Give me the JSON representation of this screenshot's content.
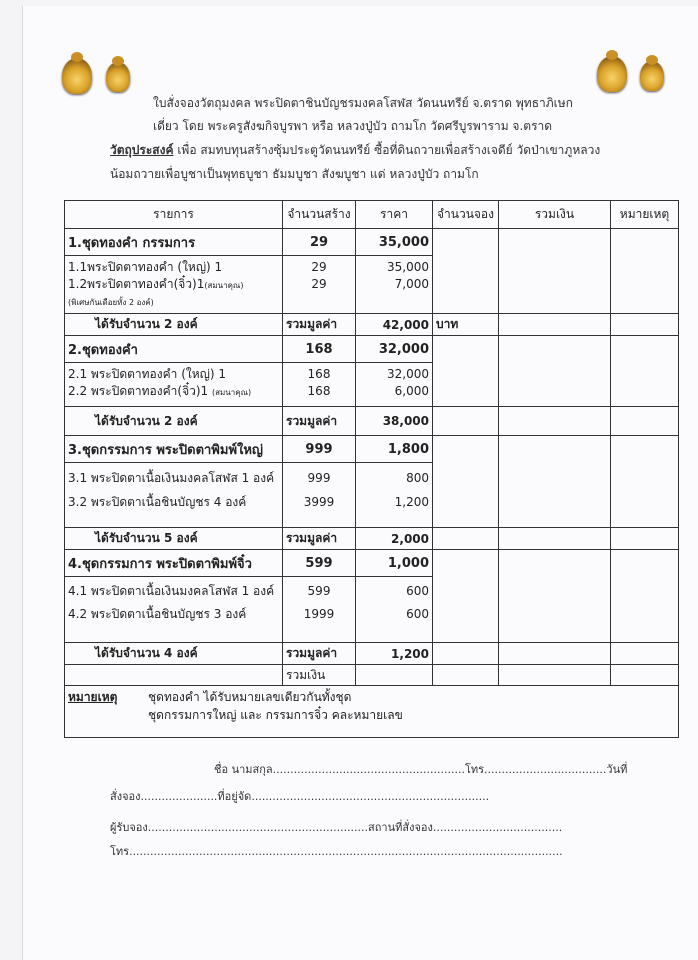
{
  "header": {
    "line1": "ใบสั่งจองวัตถุมงคล  พระปิดตาชินบัญชรมงคลโสฬส  วัดนนทรีย์  จ.ตราด พุทธาภิเษก",
    "line2": "เดี่ยว โดย พระครูสังฆกิจบูรพา หรือ หลวงปู่บัว  ถามโก  วัดศรีบูรพาราม  จ.ตราด",
    "purpose_label": "วัตถุประสงค์",
    "line3": " เพื่อ สมทบทุนสร้างซุ้มประตูวัดนนทรีย์  ซื้อที่ดินถวายเพื่อสร้างเจดีย์ วัดป่าเขาภูหลวง",
    "line4": "น้อมถวายเพื่อบูชาเป็นพุทธบูชา ธัมมบูชา สังฆบูชา แด่ หลวงปู่บัว ถามโก"
  },
  "table": {
    "columns": [
      "รายการ",
      "จำนวนสร้าง",
      "ราคา",
      "จำนวนจอง",
      "รวมเงิน",
      "หมายเหตุ"
    ],
    "sections": [
      {
        "title": "1.ชุดทองคำ กรรมการ",
        "qty": "29",
        "price": "35,000",
        "items": [
          {
            "name": "1.1พระปิดตาทองคำ (ใหญ่) 1",
            "qty": "29",
            "price": "35,000"
          },
          {
            "name": "1.2พระปิดตาทองคำ(จิ๋ว)1",
            "note": "(สมนาคุณ)",
            "qty": "29",
            "price": "7,000"
          }
        ],
        "extra": "(พิเศษกันเดือยทั้ง 2 องค์)",
        "sub_count": "ได้รับจำนวน  2 องค์",
        "sub_label": "รวมมูลค่า",
        "sub_value": "42,000",
        "sub_unit": "บาท"
      },
      {
        "title": "2.ชุดทองคำ",
        "qty": "168",
        "price": "32,000",
        "items": [
          {
            "name": "2.1 พระปิดตาทองคำ (ใหญ่) 1",
            "qty": "168",
            "price": "32,000"
          },
          {
            "name": "2.2 พระปิดตาทองคำ(จิ๋ว)1",
            "note": "(สมนาคุณ)",
            "qty": "168",
            "price": "6,000"
          }
        ],
        "sub_count": "ได้รับจำนวน  2 องค์",
        "sub_label": "รวมมูลค่า",
        "sub_value": "38,000"
      },
      {
        "title": "3.ชุดกรรมการ พระปิดตาพิมพ์ใหญ่",
        "qty": "999",
        "price": "1,800",
        "items": [
          {
            "name": "3.1 พระปิดตาเนื้อเงินมงคลโสฬส  1 องค์",
            "qty": "999",
            "price": "800"
          },
          {
            "name": "3.2 พระปิดตาเนื้อชินบัญชร  4 องค์",
            "qty": "3999",
            "price": "1,200"
          }
        ],
        "sub_count": "ได้รับจำนวน  5 องค์",
        "sub_label": "รวมมูลค่า",
        "sub_value": "2,000"
      },
      {
        "title": "4.ชุดกรรมการ พระปิดตาพิมพ์จิ๋ว",
        "qty": "599",
        "price": "1,000",
        "items": [
          {
            "name": "4.1 พระปิดตาเนื้อเงินมงคลโสฬส  1 องค์",
            "qty": "599",
            "price": "600"
          },
          {
            "name": "4.2 พระปิดตาเนื้อชินบัญชร  3 องค์",
            "qty": "1999",
            "price": "600"
          }
        ],
        "sub_count": "ได้รับจำนวน  4 องค์",
        "sub_label": "รวมมูลค่า",
        "sub_value": "1,200"
      }
    ],
    "total_label": "รวมเงิน",
    "remark_label": "หมายเหตุ",
    "remark_line1": "ชุดทองคำ ได้รับหมายเลขเดียวกันทั้งชุด",
    "remark_line2": "ชุดกรรมการใหญ่ และ กรรมการจิ๋ว คละหมายเลข"
  },
  "form": {
    "line1": "ชื่อ นามสกุล.......................................................โทร...................................วันที่",
    "line2": "สั่งจอง......................ที่อยู่จัด....................................................................",
    "line3": "ผู้รับจอง...............................................................สถานที่สั่งจอง.....................................",
    "line4": "โทร............................................................................................................................"
  }
}
